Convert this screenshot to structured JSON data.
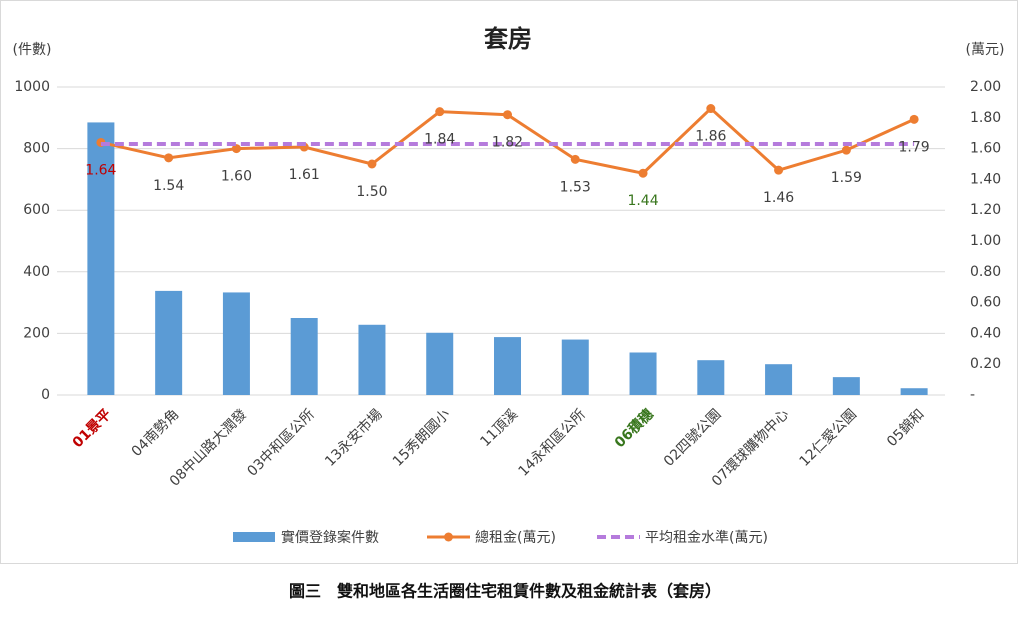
{
  "chart_data": {
    "type": "bar_line",
    "title": "套房",
    "y_label": "(件數)",
    "y2_label": "(萬元)",
    "caption": "圖三　雙和地區各生活圈住宅租賃件數及租金統計表（套房）",
    "categories": [
      "01景平",
      "04南勢角",
      "08中山路大潤發",
      "03中和區公所",
      "13永安市場",
      "15秀朗國小",
      "11頂溪",
      "14永和區公所",
      "06積穗",
      "02四號公園",
      "07環球購物中心",
      "12仁愛公園",
      "05錦和"
    ],
    "highlights": [
      {
        "index": 0,
        "color": "#c00000"
      },
      {
        "index": 8,
        "color": "#38761d"
      }
    ],
    "series": [
      {
        "name": "實價登錄案件數",
        "type": "bar",
        "color": "#5b9bd5",
        "values": [
          885,
          338,
          333,
          250,
          228,
          202,
          188,
          180,
          138,
          113,
          100,
          58,
          22
        ]
      },
      {
        "name": "總租金(萬元)",
        "type": "line",
        "axis": "y2",
        "color": "#ed7d31",
        "values": [
          1.64,
          1.54,
          1.6,
          1.61,
          1.5,
          1.84,
          1.82,
          1.53,
          1.44,
          1.86,
          1.46,
          1.59,
          1.79
        ],
        "value_labels": [
          "1.64",
          "1.54",
          "1.60",
          "1.61",
          "1.50",
          "1.84",
          "1.82",
          "1.53",
          "1.44",
          "1.86",
          "1.46",
          "1.59",
          "1.79"
        ]
      }
    ],
    "average": {
      "name": "平均租金水準(萬元)",
      "axis": "y2",
      "color": "#b57bdc",
      "value": 1.63
    },
    "ylim": [
      0,
      1000
    ],
    "yticks": [
      0,
      200,
      400,
      600,
      800,
      1000
    ],
    "y2lim": [
      0,
      2
    ],
    "y2ticks": [
      {
        "value": 0,
        "label": "-"
      },
      {
        "value": 0.2,
        "label": "0.20"
      },
      {
        "value": 0.4,
        "label": "0.40"
      },
      {
        "value": 0.6,
        "label": "0.60"
      },
      {
        "value": 0.8,
        "label": "0.80"
      },
      {
        "value": 1,
        "label": "1.00"
      },
      {
        "value": 1.2,
        "label": "1.20"
      },
      {
        "value": 1.4,
        "label": "1.40"
      },
      {
        "value": 1.6,
        "label": "1.60"
      },
      {
        "value": 1.8,
        "label": "1.80"
      },
      {
        "value": 2,
        "label": "2.00"
      }
    ],
    "grid": true
  }
}
